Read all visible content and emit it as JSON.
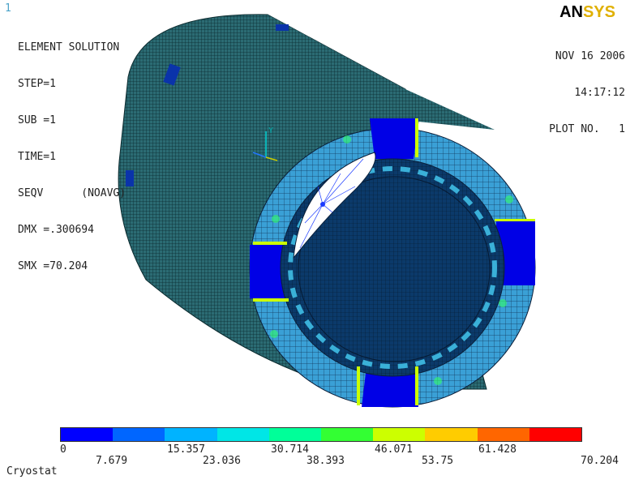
{
  "window_number": "1",
  "info_lines": [
    "ELEMENT SOLUTION",
    "STEP=1",
    "SUB =1",
    "TIME=1",
    "SEQV      (NOAVG)",
    "DMX =.300694",
    "SMX =70.204"
  ],
  "logo": {
    "part1": "AN",
    "part2": "SYS"
  },
  "date_lines": [
    "NOV 16 2006",
    "14:17:12",
    "PLOT NO.   1"
  ],
  "axis_label": "Y",
  "legend": {
    "colors": [
      "#0000ff",
      "#0066ff",
      "#00b3ff",
      "#00e6e6",
      "#00ff99",
      "#33ff33",
      "#ccff00",
      "#ffcc00",
      "#ff6600",
      "#ff0000"
    ],
    "upper_ticks": [
      "0",
      "15.357",
      "30.714",
      "46.071",
      "61.428"
    ],
    "lower_ticks": [
      "7.679",
      "23.036",
      "38.393",
      "53.75",
      "70.204"
    ]
  },
  "footer": "Cryostat"
}
